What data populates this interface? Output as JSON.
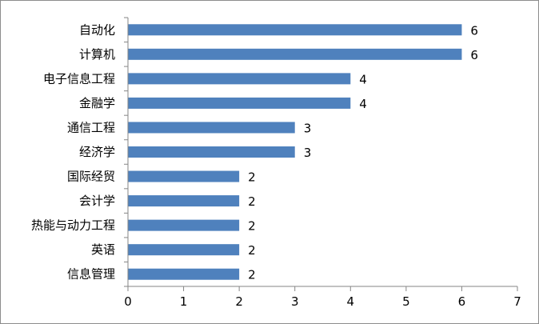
{
  "chart_data": {
    "type": "bar",
    "orientation": "horizontal",
    "title": "",
    "xlabel": "",
    "ylabel": "",
    "categories": [
      "自动化",
      "计算机",
      "电子信息工程",
      "金融学",
      "通信工程",
      "经济学",
      "国际经贸",
      "会计学",
      "热能与动力工程",
      "英语",
      "信息管理"
    ],
    "values": [
      6,
      6,
      4,
      4,
      3,
      3,
      2,
      2,
      2,
      2,
      2
    ],
    "xlim": [
      0,
      7
    ],
    "xticks": [
      "0",
      "1",
      "2",
      "3",
      "4",
      "5",
      "6",
      "7"
    ],
    "grid": false,
    "legend": "none",
    "data_labels": true,
    "bar_color": "#4f81bd",
    "axis_color": "#868686"
  }
}
